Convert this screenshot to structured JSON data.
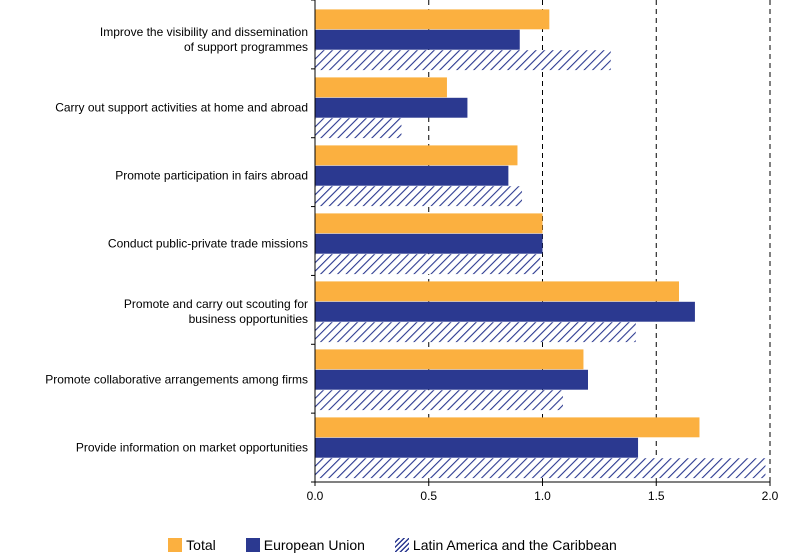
{
  "chart_data": {
    "type": "hbar",
    "categories": [
      "Improve the visibility and dissemination\nof support programmes",
      "Carry out support activities at home and abroad",
      "Promote participation in fairs abroad",
      "Conduct public-private trade missions",
      "Promote and carry out scouting for\nbusiness opportunities",
      "Promote collaborative arrangements among firms",
      "Provide information on market opportunities"
    ],
    "series": [
      {
        "name": "Total",
        "color": "#fbb040",
        "values": [
          1.03,
          0.58,
          0.89,
          1.0,
          1.6,
          1.18,
          1.69
        ]
      },
      {
        "name": "European Union",
        "color": "#2b3990",
        "values": [
          0.9,
          0.67,
          0.85,
          1.0,
          1.67,
          1.2,
          1.42
        ]
      },
      {
        "name": "Latin America and the Caribbean",
        "color": "#2b3990",
        "pattern": "hatch",
        "values": [
          1.3,
          0.38,
          0.91,
          0.99,
          1.41,
          1.09,
          1.98
        ]
      }
    ],
    "xlim": [
      0,
      2.0
    ],
    "xticks": [
      {
        "value": 0,
        "label": "0.0"
      },
      {
        "value": 0.5,
        "label": "0.5"
      },
      {
        "value": 1.0,
        "label": "1.0"
      },
      {
        "value": 1.5,
        "label": "1.5"
      },
      {
        "value": 2.0,
        "label": "2.0"
      }
    ],
    "grid": true
  }
}
